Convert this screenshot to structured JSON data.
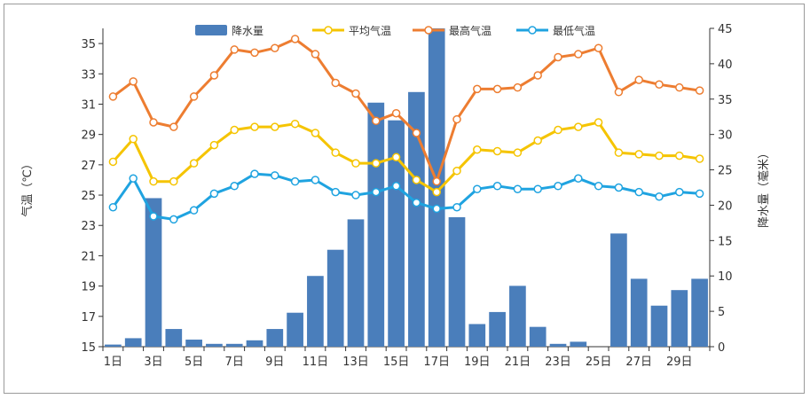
{
  "chart_data": {
    "type": "bar+line",
    "x": [
      "1日",
      "2日",
      "3日",
      "4日",
      "5日",
      "6日",
      "7日",
      "8日",
      "9日",
      "10日",
      "11日",
      "12日",
      "13日",
      "14日",
      "15日",
      "16日",
      "17日",
      "18日",
      "19日",
      "20日",
      "21日",
      "22日",
      "23日",
      "24日",
      "25日",
      "26日",
      "27日",
      "28日",
      "29日",
      "30日"
    ],
    "x_tick_labels": [
      "1日",
      "3日",
      "5日",
      "7日",
      "9日",
      "11日",
      "13日",
      "15日",
      "17日",
      "19日",
      "21日",
      "23日",
      "25日",
      "27日",
      "29日"
    ],
    "left_axis": {
      "title": "气温（℃）",
      "ylim": [
        15,
        36
      ],
      "ticks": [
        15,
        17,
        19,
        21,
        23,
        25,
        27,
        29,
        31,
        33,
        35
      ]
    },
    "right_axis": {
      "title": "降水量（毫米）",
      "ylim": [
        0,
        45
      ],
      "ticks": [
        0,
        5,
        10,
        15,
        20,
        25,
        30,
        35,
        40,
        45
      ]
    },
    "series": [
      {
        "name": "降水量",
        "type": "bar",
        "axis": "right",
        "color": "#4a7ebb",
        "values": [
          0.3,
          1.2,
          21,
          2.5,
          1,
          0.4,
          0.4,
          0.9,
          2.5,
          4.8,
          10,
          13.7,
          18,
          34.5,
          32,
          36,
          45,
          18.3,
          3.2,
          4.9,
          8.6,
          2.8,
          0.4,
          0.7,
          0,
          16,
          9.6,
          5.8,
          8,
          9.6
        ]
      },
      {
        "name": "平均气温",
        "type": "line",
        "axis": "left",
        "color": "#f5c400",
        "values": [
          27.2,
          28.7,
          25.9,
          25.9,
          27.1,
          28.3,
          29.3,
          29.5,
          29.5,
          29.7,
          29.1,
          27.8,
          27.1,
          27.1,
          27.5,
          26,
          25.2,
          26.6,
          28,
          27.9,
          27.8,
          28.6,
          29.3,
          29.5,
          29.8,
          27.8,
          27.7,
          27.6,
          27.6,
          27.4
        ]
      },
      {
        "name": "最高气温",
        "type": "line",
        "axis": "left",
        "color": "#ed7d31",
        "values": [
          31.5,
          32.5,
          29.8,
          29.5,
          31.5,
          32.9,
          34.6,
          34.4,
          34.7,
          35.3,
          34.3,
          32.4,
          31.7,
          29.9,
          30.4,
          29.1,
          25.9,
          30,
          32,
          32,
          32.1,
          32.9,
          34.1,
          34.3,
          34.7,
          31.8,
          32.6,
          32.3,
          32.1,
          31.9
        ]
      },
      {
        "name": "最低气温",
        "type": "line",
        "axis": "left",
        "color": "#1fa3e0",
        "values": [
          24.2,
          26.1,
          23.6,
          23.4,
          24,
          25.1,
          25.6,
          26.4,
          26.3,
          25.9,
          26,
          25.2,
          25,
          25.2,
          25.6,
          24.5,
          24.1,
          24.2,
          25.4,
          25.6,
          25.4,
          25.4,
          25.6,
          26.1,
          25.6,
          25.5,
          25.2,
          24.9,
          25.2,
          25.1
        ]
      }
    ],
    "legend": [
      "降水量",
      "平均气温",
      "最高气温",
      "最低气温"
    ],
    "legend_position": "top-center"
  }
}
